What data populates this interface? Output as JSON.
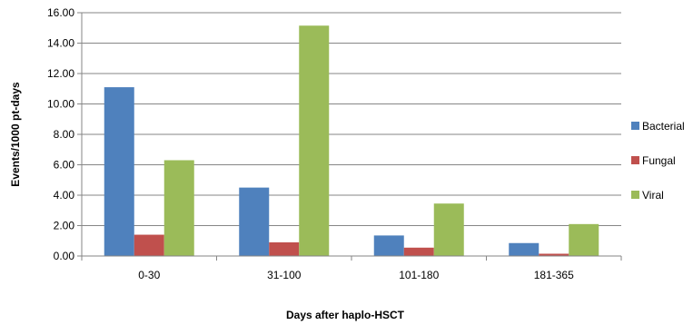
{
  "chart_data": {
    "type": "bar",
    "categories": [
      "0-30",
      "31-100",
      "101-180",
      "181-365"
    ],
    "series": [
      {
        "name": "Bacterial",
        "values": [
          11.1,
          4.5,
          1.35,
          0.85
        ],
        "color": "#4F81BD"
      },
      {
        "name": "Fungal",
        "values": [
          1.4,
          0.9,
          0.55,
          0.15
        ],
        "color": "#C0504D"
      },
      {
        "name": "Viral",
        "values": [
          6.3,
          15.15,
          3.45,
          2.1
        ],
        "color": "#9BBB59"
      }
    ],
    "xlabel": "Days after haplo-HSCT",
    "ylabel": "Events/1000 pt-days",
    "ylim": [
      0,
      16
    ],
    "yticks": [
      "0.00",
      "2.00",
      "4.00",
      "6.00",
      "8.00",
      "10.00",
      "12.00",
      "14.00",
      "16.00"
    ],
    "grid": true,
    "legend": "right"
  }
}
